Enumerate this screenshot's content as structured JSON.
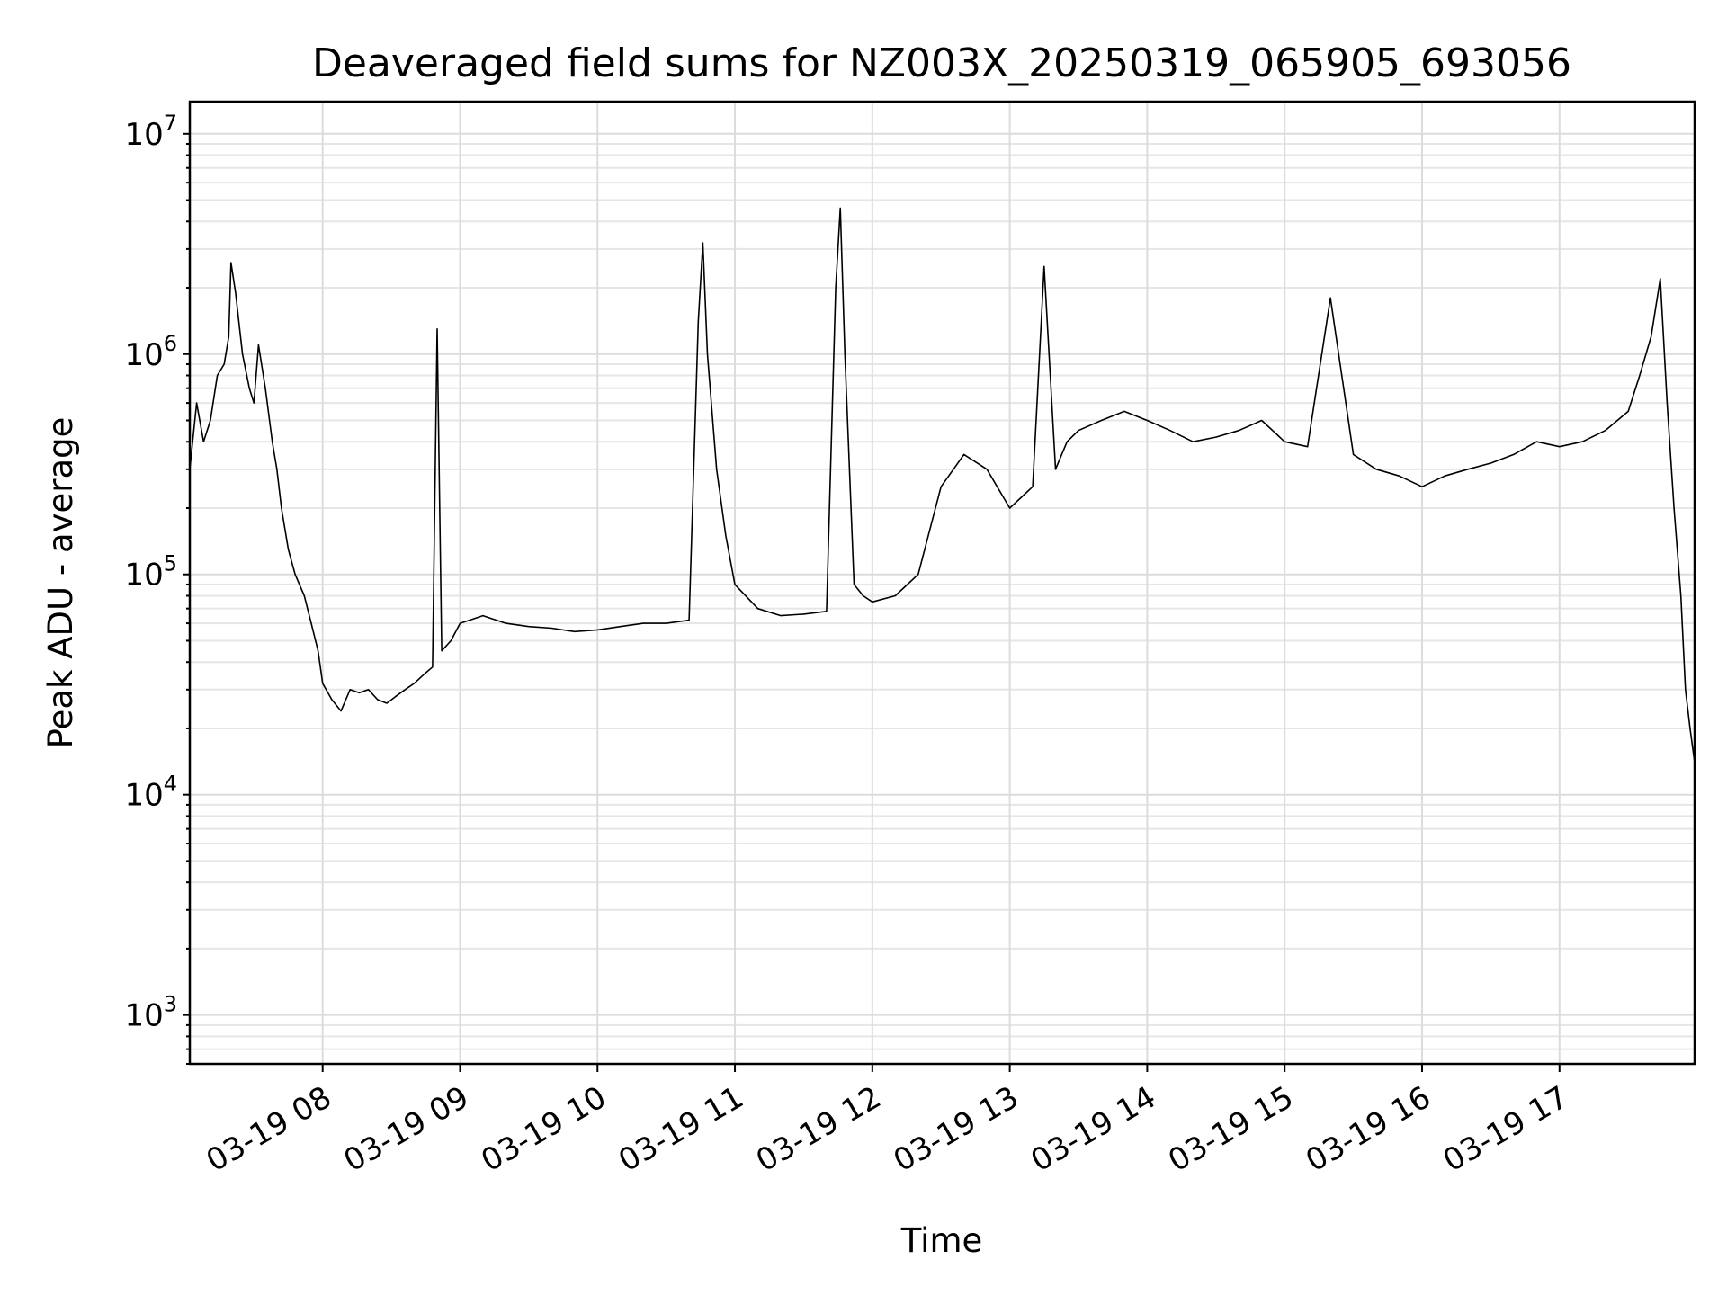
{
  "chart_data": {
    "type": "line",
    "title": "Deaveraged field sums for NZ003X_20250319_065905_693056",
    "xlabel": "Time",
    "ylabel": "Peak ADU - average",
    "yscale": "log",
    "ylim": [
      600,
      14000000
    ],
    "xlim": [
      "2025-03-19 07:02",
      "2025-03-19 17:59"
    ],
    "x_tick_labels": [
      "03-19 08",
      "03-19 09",
      "03-19 10",
      "03-19 11",
      "03-19 12",
      "03-19 13",
      "03-19 14",
      "03-19 15",
      "03-19 16",
      "03-19 17"
    ],
    "y_tick_labels": [
      {
        "base": "10",
        "exp": "3"
      },
      {
        "base": "10",
        "exp": "4"
      },
      {
        "base": "10",
        "exp": "5"
      },
      {
        "base": "10",
        "exp": "6"
      },
      {
        "base": "10",
        "exp": "7"
      }
    ],
    "grid": true,
    "line_color": "#000000",
    "series": [
      {
        "x": [
          "07:02",
          "07:05",
          "07:08",
          "07:11",
          "07:14",
          "07:17",
          "07:19",
          "07:20",
          "07:22",
          "07:25",
          "07:28",
          "07:30",
          "07:32",
          "07:35",
          "07:38",
          "07:40",
          "07:42",
          "07:45",
          "07:48",
          "07:52",
          "07:55",
          "07:58",
          "08:00",
          "08:04",
          "08:08",
          "08:12",
          "08:16",
          "08:20",
          "08:24",
          "08:28",
          "08:32",
          "08:36",
          "08:40",
          "08:44",
          "08:48",
          "08:50",
          "08:52",
          "08:56",
          "09:00",
          "09:10",
          "09:20",
          "09:30",
          "09:40",
          "09:50",
          "10:00",
          "10:10",
          "10:20",
          "10:30",
          "10:40",
          "10:44",
          "10:46",
          "10:48",
          "10:52",
          "10:56",
          "11:00",
          "11:10",
          "11:20",
          "11:30",
          "11:40",
          "11:44",
          "11:46",
          "11:48",
          "11:52",
          "11:56",
          "12:00",
          "12:10",
          "12:20",
          "12:30",
          "12:40",
          "12:50",
          "13:00",
          "13:10",
          "13:15",
          "13:20",
          "13:25",
          "13:30",
          "13:40",
          "13:50",
          "14:00",
          "14:10",
          "14:20",
          "14:30",
          "14:40",
          "14:50",
          "15:00",
          "15:10",
          "15:20",
          "15:30",
          "15:40",
          "15:50",
          "16:00",
          "16:10",
          "16:20",
          "16:30",
          "16:40",
          "16:50",
          "17:00",
          "17:10",
          "17:20",
          "17:30",
          "17:35",
          "17:40",
          "17:44",
          "17:47",
          "17:50",
          "17:53",
          "17:55",
          "17:57",
          "17:59"
        ],
        "y": [
          300000,
          600000,
          400000,
          500000,
          800000,
          900000,
          1200000,
          2600000,
          1900000,
          1000000,
          700000,
          600000,
          1100000,
          700000,
          400000,
          300000,
          200000,
          130000,
          100000,
          80000,
          60000,
          45000,
          32000,
          27000,
          24000,
          30000,
          29000,
          30000,
          27000,
          26000,
          28000,
          30000,
          32000,
          35000,
          38000,
          1300000,
          45000,
          50000,
          60000,
          65000,
          60000,
          58000,
          57000,
          55000,
          56000,
          58000,
          60000,
          60000,
          62000,
          1400000,
          3200000,
          1000000,
          300000,
          150000,
          90000,
          70000,
          65000,
          66000,
          68000,
          2000000,
          4600000,
          1000000,
          90000,
          80000,
          75000,
          80000,
          100000,
          250000,
          350000,
          300000,
          200000,
          250000,
          2500000,
          300000,
          400000,
          450000,
          500000,
          550000,
          500000,
          450000,
          400000,
          420000,
          450000,
          500000,
          400000,
          380000,
          1800000,
          350000,
          300000,
          280000,
          250000,
          280000,
          300000,
          320000,
          350000,
          400000,
          380000,
          400000,
          450000,
          550000,
          800000,
          1200000,
          2200000,
          600000,
          200000,
          80000,
          30000,
          20000,
          14000
        ]
      }
    ]
  }
}
